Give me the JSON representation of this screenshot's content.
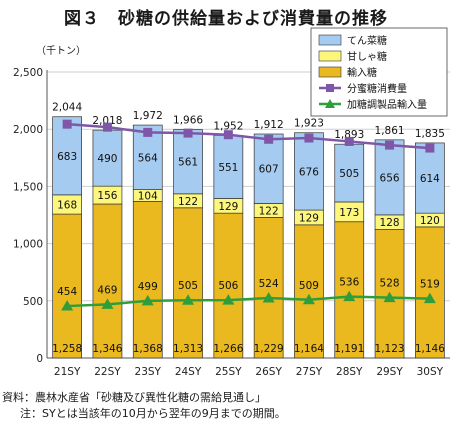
{
  "chart_data": {
    "type": "bar",
    "title": "図３　砂糖の供給量および消費量の推移",
    "unit": "（千トン）",
    "categories": [
      "21SY",
      "22SY",
      "23SY",
      "24SY",
      "25SY",
      "26SY",
      "27SY",
      "28SY",
      "29SY",
      "30SY"
    ],
    "ylim": [
      0,
      2500
    ],
    "yticks": [
      "0",
      "500",
      "1,000",
      "1,500",
      "2,000",
      "2,500"
    ],
    "ytick_values": [
      0,
      500,
      1000,
      1500,
      2000,
      2500
    ],
    "grid": true,
    "legend_position": "top-right",
    "stack_series": [
      {
        "name": "輸入糖",
        "color": "#EAB81F",
        "values": [
          1258,
          1346,
          1368,
          1313,
          1266,
          1229,
          1164,
          1191,
          1123,
          1146
        ],
        "labels": [
          "1,258",
          "1,346",
          "1,368",
          "1,313",
          "1,266",
          "1,229",
          "1,164",
          "1,191",
          "1,123",
          "1,146"
        ]
      },
      {
        "name": "甘しゃ糖",
        "color": "#FCF67C",
        "values": [
          168,
          156,
          104,
          122,
          129,
          122,
          129,
          173,
          128,
          120
        ],
        "labels": [
          "168",
          "156",
          "104",
          "122",
          "129",
          "122",
          "129",
          "173",
          "128",
          "120"
        ]
      },
      {
        "name": "てん菜糖",
        "color": "#A5CBF1",
        "values": [
          683,
          490,
          564,
          561,
          551,
          607,
          676,
          505,
          656,
          614
        ],
        "labels": [
          "683",
          "490",
          "564",
          "561",
          "551",
          "607",
          "676",
          "505",
          "656",
          "614"
        ]
      }
    ],
    "totals": [
      "2,044",
      "2,018",
      "1,972",
      "1,966",
      "1,952",
      "1,912",
      "1,923",
      "1,893",
      "1,861",
      "1,835"
    ],
    "line_series": [
      {
        "name": "分蜜糖消費量",
        "color": "#7E57A8",
        "marker": "square",
        "values": [
          2044,
          2018,
          1972,
          1966,
          1952,
          1912,
          1923,
          1893,
          1861,
          1835
        ]
      },
      {
        "name": "加糖調製品輸入量",
        "color": "#2E9E3C",
        "marker": "triangle",
        "values": [
          454,
          469,
          499,
          505,
          506,
          524,
          509,
          536,
          528,
          519
        ],
        "labels": [
          "454",
          "469",
          "499",
          "505",
          "506",
          "524",
          "509",
          "536",
          "528",
          "519"
        ]
      }
    ],
    "legend_order": [
      "てん菜糖",
      "甘しゃ糖",
      "輸入糖",
      "分蜜糖消費量",
      "加糖調製品輸入量"
    ]
  },
  "notes": {
    "source": "資料：農林水産省「砂糖及び異性化糖の需給見通し」",
    "footnote": "注：SYとは当該年の10月から翌年の9月までの期間。"
  }
}
